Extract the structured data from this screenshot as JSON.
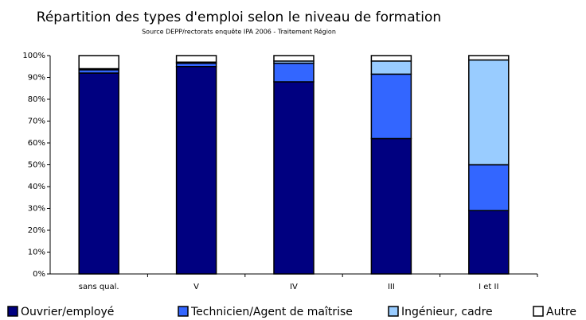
{
  "chart_data": {
    "type": "stacked_bar",
    "title": "Répartition des types d'emploi selon le niveau de formation",
    "subtitle": "Source DEPP/rectorats enquête IPA 2006 - Traitement Région",
    "categories": [
      "sans qual.",
      "V",
      "IV",
      "III",
      "I et II"
    ],
    "series": [
      {
        "name": "Ouvrier/employé",
        "color": "#000080",
        "values": [
          92,
          95,
          88,
          62,
          29
        ]
      },
      {
        "name": "Technicien/Agent de maîtrise",
        "color": "#3366ff",
        "values": [
          1.5,
          1.5,
          8.5,
          29.5,
          21
        ]
      },
      {
        "name": "Ingénieur, cadre",
        "color": "#99ccff",
        "values": [
          0.5,
          0.5,
          1,
          6,
          48
        ]
      },
      {
        "name": "Autre",
        "color": "#ffffff",
        "values": [
          6,
          3,
          2.5,
          2.5,
          2
        ]
      }
    ],
    "ylim": [
      0,
      100
    ],
    "yticks": [
      {
        "value": 0,
        "label": "0%"
      },
      {
        "value": 10,
        "label": "10%"
      },
      {
        "value": 20,
        "label": "20%"
      },
      {
        "value": 30,
        "label": "30%"
      },
      {
        "value": 40,
        "label": "40%"
      },
      {
        "value": 50,
        "label": "50%"
      },
      {
        "value": 60,
        "label": "60%"
      },
      {
        "value": 70,
        "label": "70%"
      },
      {
        "value": 80,
        "label": "80%"
      },
      {
        "value": 90,
        "label": "90%"
      },
      {
        "value": 100,
        "label": "100%"
      }
    ],
    "legend": "bottom"
  }
}
